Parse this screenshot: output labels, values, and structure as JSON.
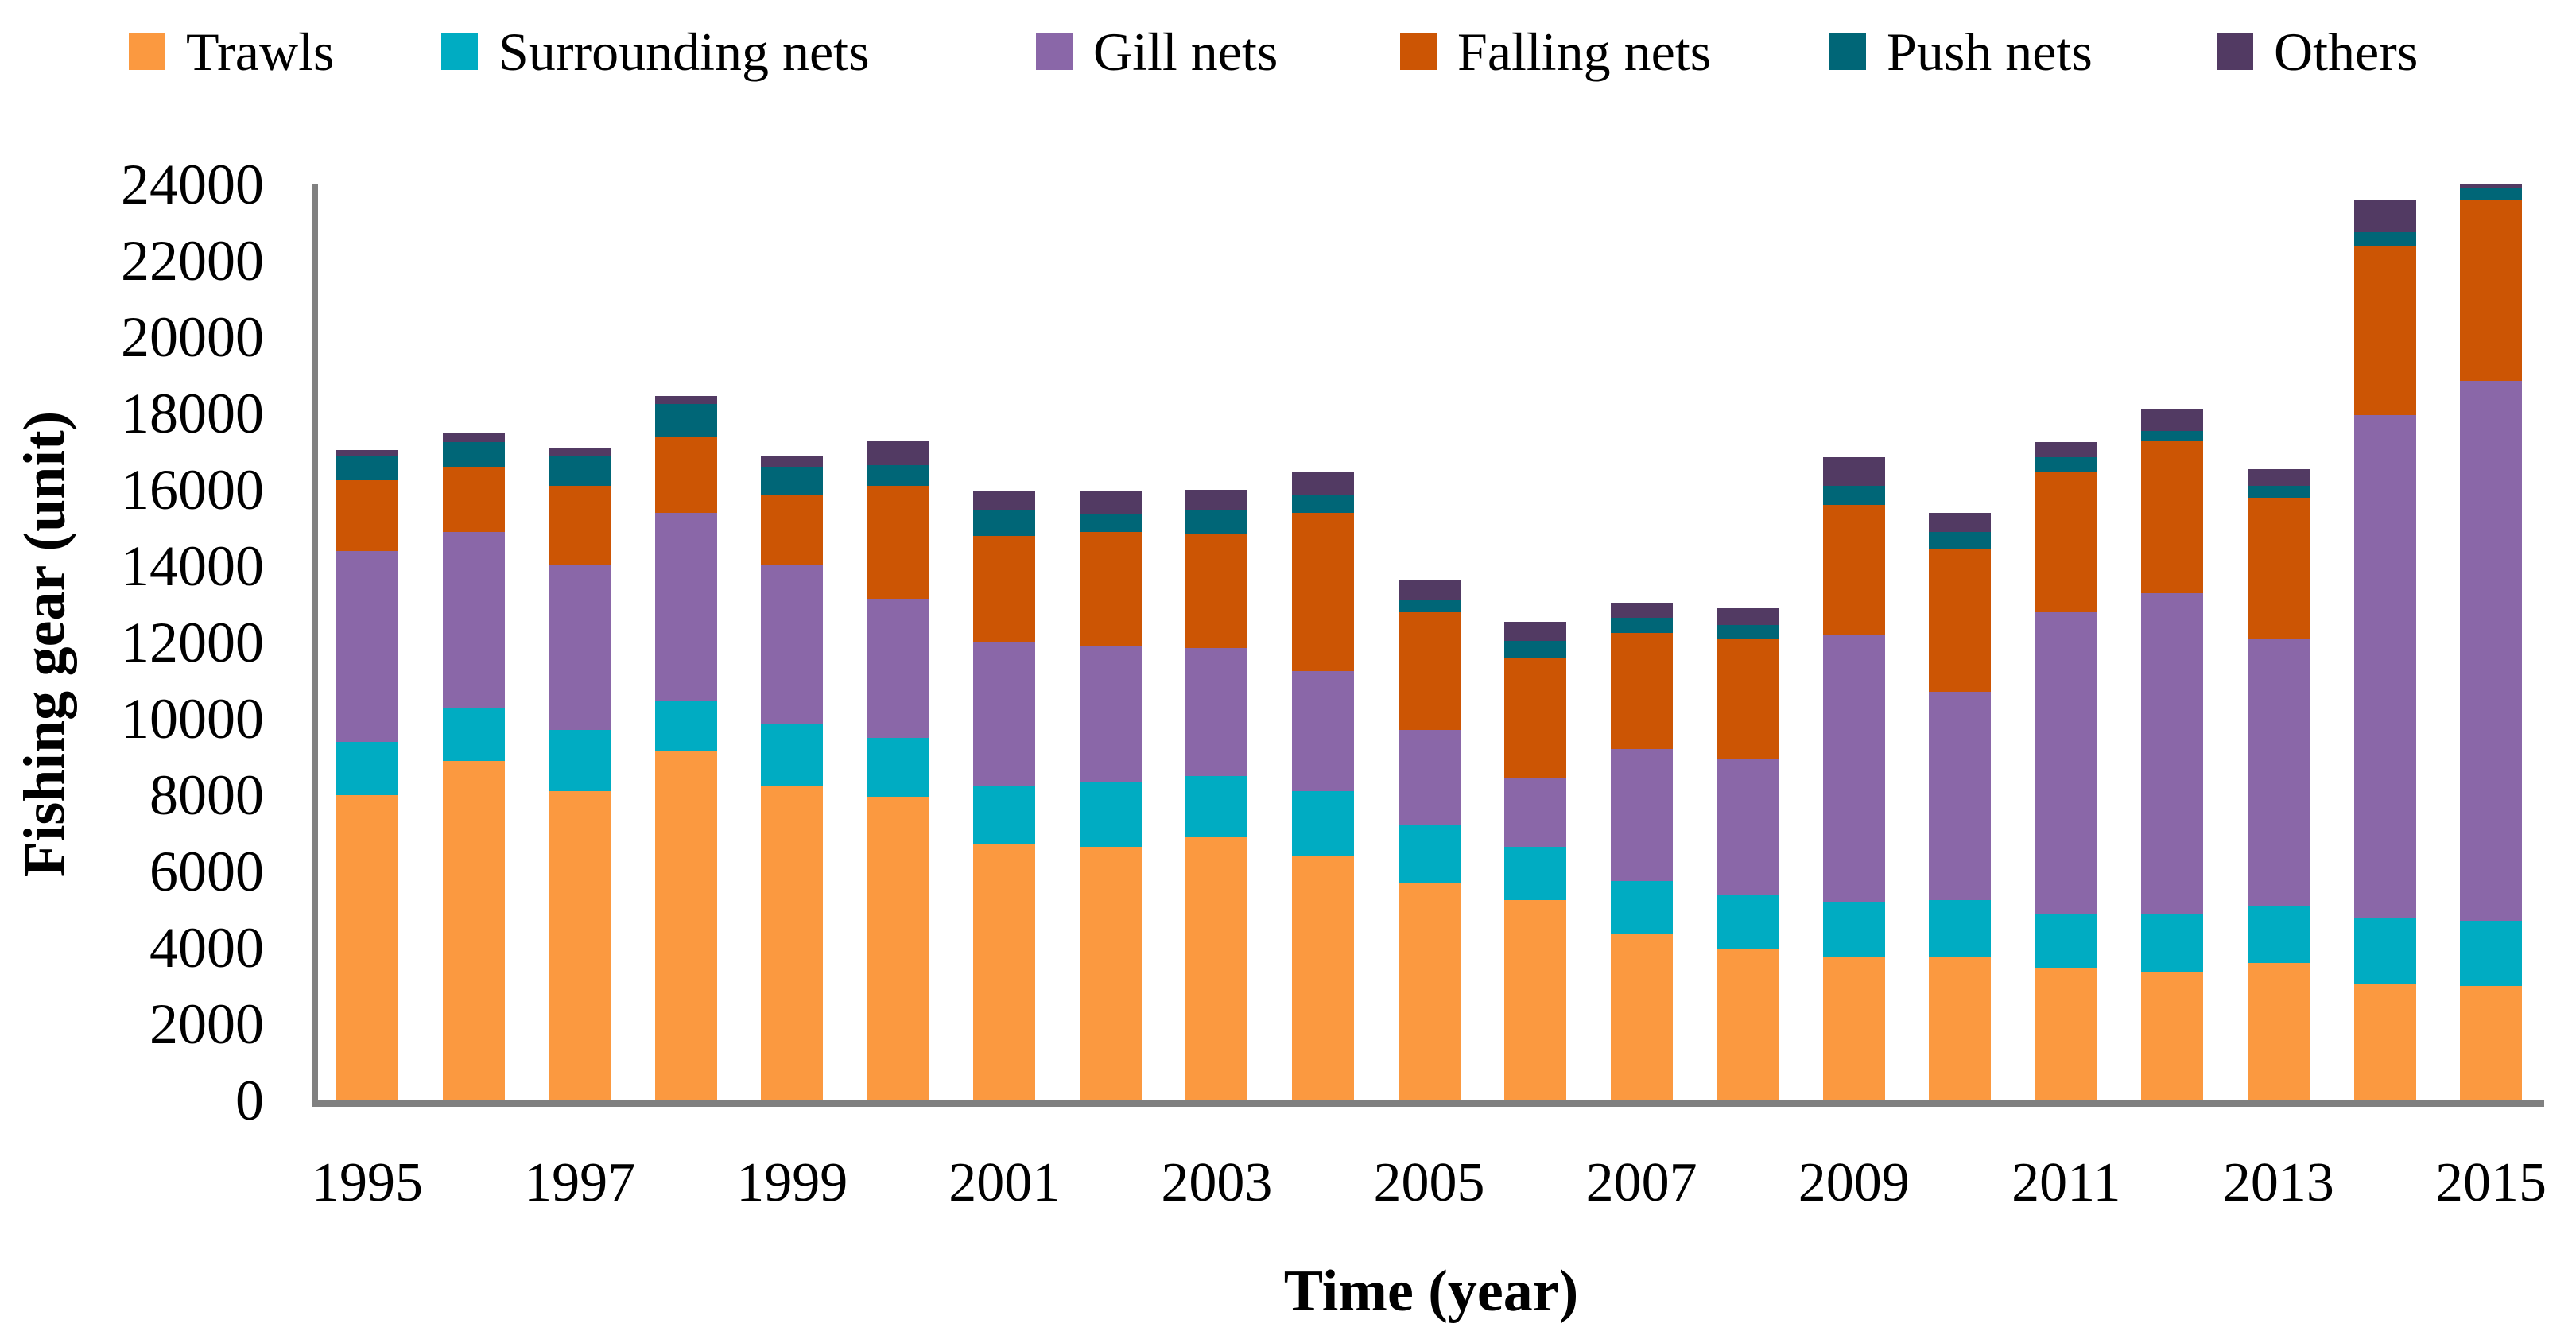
{
  "chart_data": {
    "type": "bar",
    "stacked": true,
    "title": "",
    "xlabel": "Time (year)",
    "ylabel": "Fishing gear (unit)",
    "ylim": [
      0,
      24000
    ],
    "ytick_step": 2000,
    "ytick_labels": [
      "0",
      "2000",
      "4000",
      "6000",
      "8000",
      "10000",
      "12000",
      "14000",
      "16000",
      "18000",
      "20000",
      "22000",
      "24000"
    ],
    "xtick_labels": [
      "1995",
      "1997",
      "1999",
      "2001",
      "2003",
      "2005",
      "2007",
      "2009",
      "2011",
      "2013",
      "2015"
    ],
    "categories": [
      1995,
      1996,
      1997,
      1998,
      1999,
      2000,
      2001,
      2002,
      2003,
      2004,
      2005,
      2006,
      2007,
      2008,
      2009,
      2010,
      2011,
      2012,
      2013,
      2014,
      2015
    ],
    "series": [
      {
        "name": "Trawls",
        "color": "#FB9940",
        "values": [
          8000,
          8900,
          8100,
          9150,
          8250,
          7950,
          6700,
          6650,
          6900,
          6400,
          5700,
          5250,
          4350,
          3950,
          3750,
          3750,
          3450,
          3350,
          3600,
          3050,
          3000
        ]
      },
      {
        "name": "Surrounding nets",
        "color": "#00ACC2",
        "values": [
          1400,
          1400,
          1600,
          1300,
          1600,
          1550,
          1550,
          1700,
          1600,
          1700,
          1500,
          1400,
          1400,
          1450,
          1450,
          1500,
          1450,
          1550,
          1500,
          1750,
          1700
        ]
      },
      {
        "name": "Gill nets",
        "color": "#8A67A8",
        "values": [
          5000,
          4600,
          4350,
          4950,
          4200,
          3650,
          3750,
          3550,
          3350,
          3150,
          2500,
          1800,
          3450,
          3550,
          7000,
          5450,
          7900,
          8400,
          7000,
          13150,
          14150
        ]
      },
      {
        "name": "Falling nets",
        "color": "#CC5504",
        "values": [
          1850,
          1700,
          2050,
          2000,
          1800,
          2950,
          2800,
          3000,
          3000,
          4150,
          3100,
          3150,
          3050,
          3150,
          3400,
          3750,
          3650,
          4000,
          3700,
          4450,
          4750
        ]
      },
      {
        "name": "Push nets",
        "color": "#006677",
        "values": [
          650,
          650,
          800,
          850,
          750,
          550,
          650,
          450,
          600,
          450,
          300,
          450,
          400,
          350,
          500,
          450,
          400,
          250,
          300,
          350,
          300
        ]
      },
      {
        "name": "Others",
        "color": "#523A63",
        "values": [
          150,
          250,
          200,
          200,
          300,
          650,
          500,
          600,
          550,
          600,
          550,
          500,
          400,
          450,
          750,
          500,
          400,
          550,
          450,
          850,
          100
        ]
      }
    ],
    "legend_position": "top",
    "grid": false,
    "axis_color": "#808080",
    "text_color": "#000000"
  }
}
